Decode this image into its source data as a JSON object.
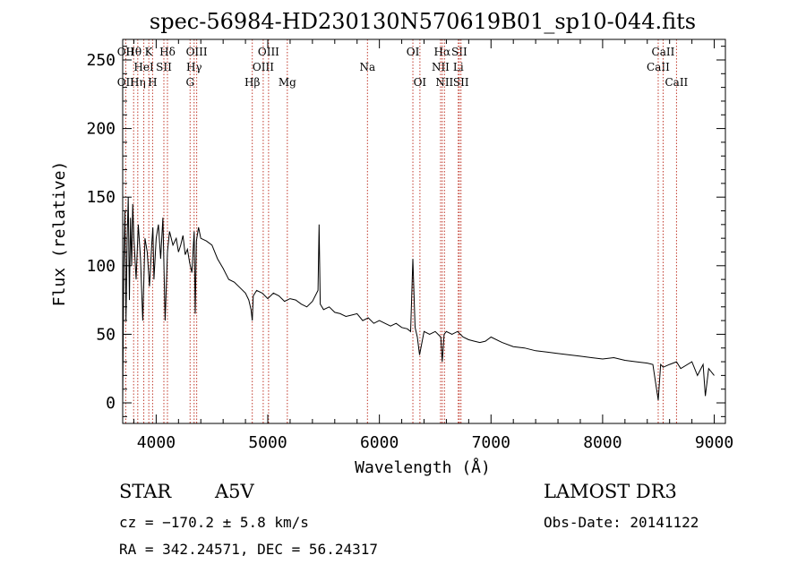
{
  "chart_data": {
    "type": "line",
    "title": "spec-56984-HD230130N570619B01_sp10-044.fits",
    "xlabel": "Wavelength (Å)",
    "ylabel": "Flux (relative)",
    "xlim": [
      3700,
      9100
    ],
    "ylim": [
      -15,
      265
    ],
    "xticks": [
      4000,
      5000,
      6000,
      7000,
      8000,
      9000
    ],
    "yticks": [
      0,
      50,
      100,
      150,
      200,
      250
    ],
    "series": [
      {
        "name": "flux",
        "x": [
          3700,
          3710,
          3720,
          3730,
          3740,
          3750,
          3760,
          3770,
          3780,
          3790,
          3800,
          3820,
          3840,
          3860,
          3880,
          3900,
          3920,
          3940,
          3960,
          3970,
          3980,
          4000,
          4020,
          4040,
          4060,
          4080,
          4101,
          4120,
          4150,
          4180,
          4200,
          4220,
          4240,
          4260,
          4280,
          4300,
          4320,
          4340,
          4350,
          4360,
          4380,
          4400,
          4450,
          4500,
          4550,
          4600,
          4650,
          4700,
          4750,
          4800,
          4830,
          4850,
          4861,
          4870,
          4900,
          4950,
          5000,
          5050,
          5100,
          5150,
          5200,
          5250,
          5300,
          5350,
          5400,
          5450,
          5460,
          5470,
          5500,
          5550,
          5600,
          5650,
          5700,
          5750,
          5800,
          5850,
          5900,
          5950,
          6000,
          6050,
          6100,
          6150,
          6200,
          6250,
          6280,
          6300,
          6320,
          6340,
          6360,
          6400,
          6450,
          6500,
          6550,
          6563,
          6580,
          6600,
          6650,
          6700,
          6750,
          6800,
          6850,
          6900,
          6950,
          7000,
          7100,
          7200,
          7300,
          7400,
          7500,
          7600,
          7700,
          7800,
          7900,
          8000,
          8100,
          8200,
          8300,
          8400,
          8450,
          8498,
          8520,
          8542,
          8600,
          8662,
          8700,
          8800,
          8850,
          8900,
          8920,
          8950,
          9000
        ],
        "values": [
          0,
          100,
          140,
          60,
          120,
          150,
          75,
          135,
          100,
          145,
          120,
          90,
          130,
          105,
          60,
          120,
          110,
          85,
          115,
          128,
          90,
          120,
          130,
          105,
          135,
          60,
          110,
          125,
          115,
          120,
          110,
          115,
          122,
          108,
          112,
          102,
          95,
          125,
          65,
          118,
          128,
          120,
          118,
          115,
          105,
          98,
          90,
          88,
          84,
          80,
          75,
          68,
          60,
          78,
          82,
          80,
          76,
          80,
          78,
          74,
          76,
          75,
          72,
          70,
          74,
          82,
          130,
          72,
          68,
          70,
          66,
          65,
          63,
          64,
          65,
          60,
          62,
          58,
          60,
          58,
          56,
          58,
          55,
          54,
          52,
          105,
          55,
          48,
          35,
          52,
          50,
          52,
          48,
          30,
          50,
          52,
          50,
          52,
          48,
          46,
          45,
          44,
          45,
          48,
          44,
          41,
          40,
          38,
          37,
          36,
          35,
          34,
          33,
          32,
          33,
          31,
          30,
          29,
          28,
          2,
          28,
          26,
          28,
          30,
          25,
          30,
          20,
          28,
          5,
          25,
          20
        ]
      }
    ],
    "lines": [
      {
        "name": "OII",
        "x": 3727,
        "label_rows": [
          1,
          3
        ],
        "labels": [
          "OII",
          "OII"
        ]
      },
      {
        "name": "Hθ",
        "x": 3798,
        "label": "Hθ",
        "row": 1
      },
      {
        "name": "Hη",
        "x": 3835,
        "label": "Hη",
        "row": 3
      },
      {
        "name": "HeI",
        "x": 3889,
        "label": "HeI",
        "row": 2
      },
      {
        "name": "K",
        "x": 3934,
        "label": "K",
        "row": 1
      },
      {
        "name": "H",
        "x": 3968,
        "label": "H",
        "row": 3
      },
      {
        "name": "SII",
        "x": 4069,
        "label": "SII",
        "row": 2
      },
      {
        "name": "Hδ",
        "x": 4101,
        "label": "Hδ",
        "row": 1
      },
      {
        "name": "G",
        "x": 4304,
        "label": "G",
        "row": 3
      },
      {
        "name": "Hγ",
        "x": 4340,
        "label": "Hγ",
        "row": 2
      },
      {
        "name": "OIII",
        "x": 4363,
        "label": "OIII",
        "row": 1
      },
      {
        "name": "Hβ",
        "x": 4861,
        "label": "Hβ",
        "row": 3
      },
      {
        "name": "OIII",
        "x": 4959,
        "label": "OIII",
        "row": 2
      },
      {
        "name": "OIII",
        "x": 5007,
        "label": "OIII",
        "row": 1
      },
      {
        "name": "Mg",
        "x": 5175,
        "label": "Mg",
        "row": 3
      },
      {
        "name": "Na",
        "x": 5893,
        "label": "Na",
        "row": 2
      },
      {
        "name": "OI",
        "x": 6300,
        "label": "OI",
        "row": 1
      },
      {
        "name": "OI",
        "x": 6363,
        "label": "OI",
        "row": 3
      },
      {
        "name": "NII",
        "x": 6548,
        "label": "NII",
        "row": 2
      },
      {
        "name": "Hα",
        "x": 6563,
        "label": "Hα",
        "row": 1
      },
      {
        "name": "NII",
        "x": 6583,
        "label": "NII",
        "row": 3
      },
      {
        "name": "Li",
        "x": 6707,
        "label": "Li",
        "row": 2
      },
      {
        "name": "SII",
        "x": 6716,
        "label": "SII",
        "row": 1
      },
      {
        "name": "SII",
        "x": 6731,
        "label": "SII",
        "row": 3
      },
      {
        "name": "CaII",
        "x": 8498,
        "label": "CaII",
        "row": 2
      },
      {
        "name": "CaII",
        "x": 8542,
        "label": "CaII",
        "row": 1
      },
      {
        "name": "CaII",
        "x": 8662,
        "label": "CaII",
        "row": 3
      }
    ]
  },
  "info": {
    "object_class": "STAR",
    "subclass": "A5V",
    "survey": "LAMOST DR3",
    "cz": "cz = −170.2 ± 5.8 km/s",
    "obs_date": "Obs-Date: 20141122",
    "coords": "RA = 342.24571, DEC =  56.24317"
  }
}
